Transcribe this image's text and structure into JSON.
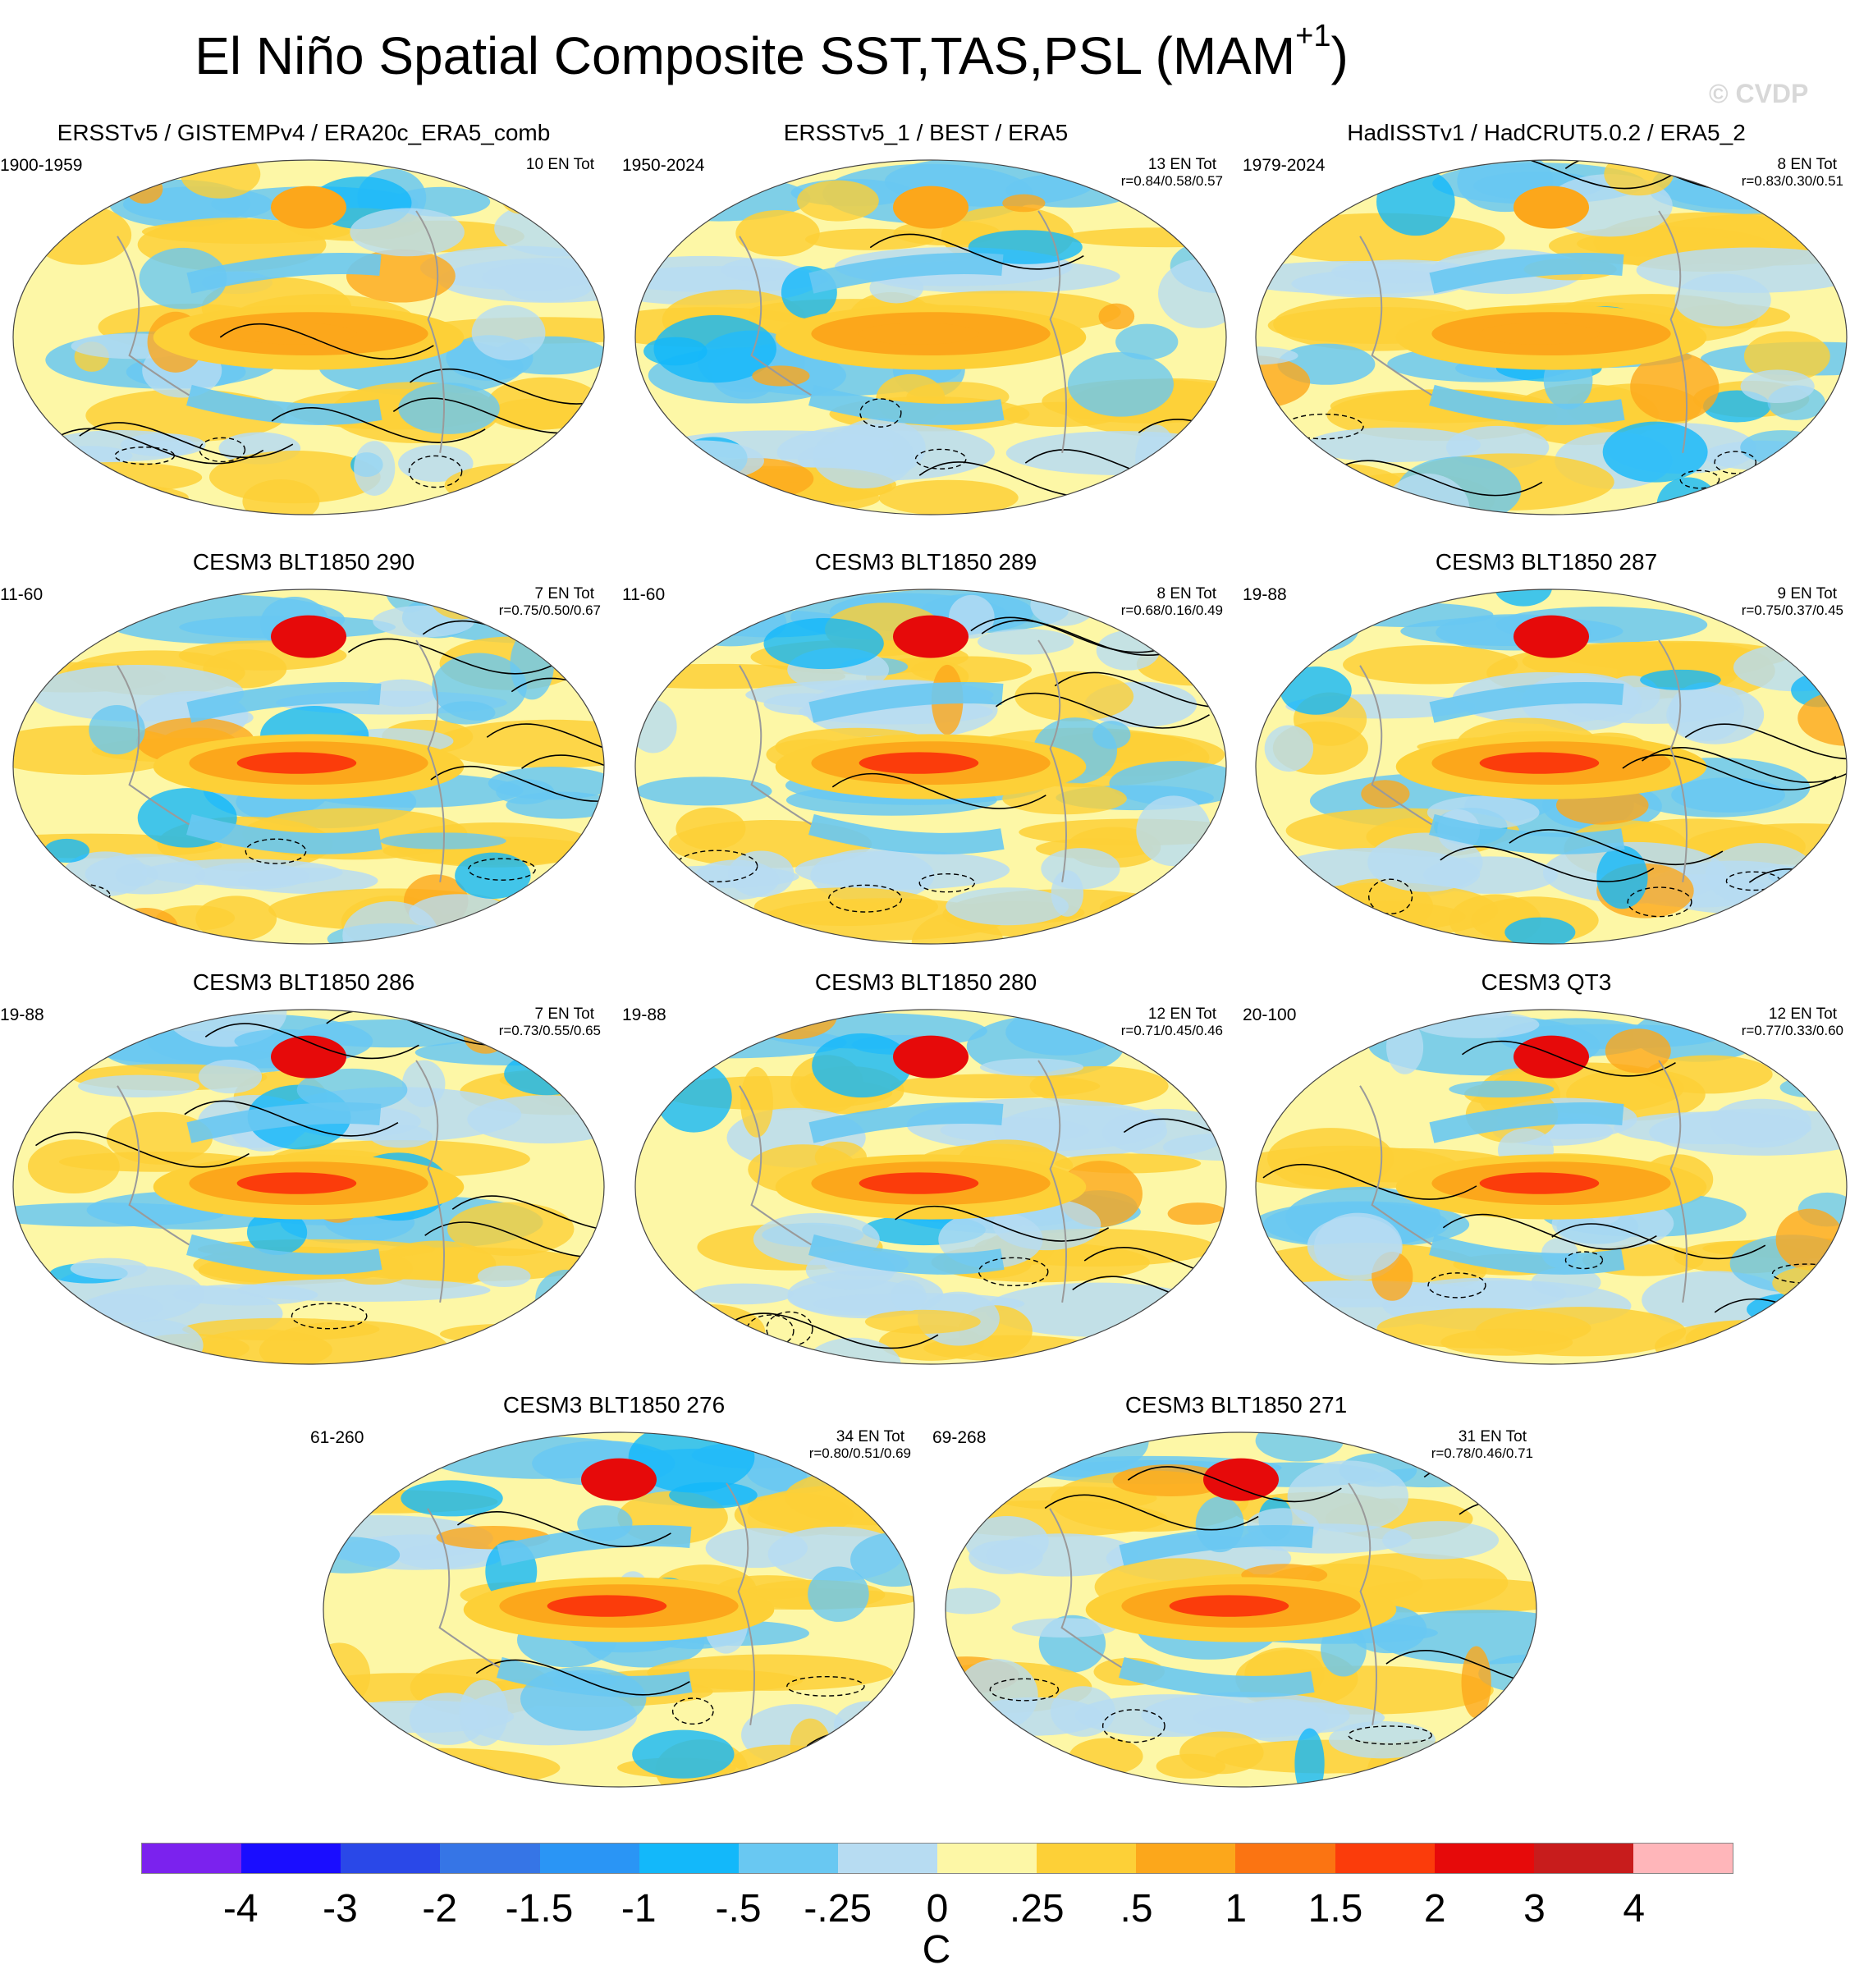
{
  "title": {
    "text": "El Niño Spatial Composite SST,TAS,PSL (MAM",
    "sup": "+1",
    "close": ")"
  },
  "copyright": "© CVDP",
  "panels": [
    {
      "title": "ERSSTv5 / GISTEMPv4 / ERA20c_ERA5_comb",
      "period": "1900-1959",
      "count": "10 EN Tot",
      "corr": ""
    },
    {
      "title": "ERSSTv5_1 / BEST / ERA5",
      "period": "1950-2024",
      "count": "13 EN Tot",
      "corr": "r=0.84/0.58/0.57"
    },
    {
      "title": "HadISSTv1 / HadCRUT5.0.2 / ERA5_2",
      "period": "1979-2024",
      "count": "8 EN Tot",
      "corr": "r=0.83/0.30/0.51"
    },
    {
      "title": "CESM3 BLT1850 290",
      "period": "11-60",
      "count": "7 EN Tot",
      "corr": "r=0.75/0.50/0.67"
    },
    {
      "title": "CESM3 BLT1850 289",
      "period": "11-60",
      "count": "8 EN Tot",
      "corr": "r=0.68/0.16/0.49"
    },
    {
      "title": "CESM3 BLT1850 287",
      "period": "19-88",
      "count": "9 EN Tot",
      "corr": "r=0.75/0.37/0.45"
    },
    {
      "title": "CESM3 BLT1850 286",
      "period": "19-88",
      "count": "7 EN Tot",
      "corr": "r=0.73/0.55/0.65"
    },
    {
      "title": "CESM3 BLT1850 280",
      "period": "19-88",
      "count": "12 EN Tot",
      "corr": "r=0.71/0.45/0.46"
    },
    {
      "title": "CESM3 QT3",
      "period": "20-100",
      "count": "12 EN Tot",
      "corr": "r=0.77/0.33/0.60"
    },
    {
      "title": "CESM3 BLT1850 276",
      "period": "61-260",
      "count": "34 EN Tot",
      "corr": "r=0.80/0.51/0.69"
    },
    {
      "title": "CESM3 BLT1850 271",
      "period": "69-268",
      "count": "31 EN Tot",
      "corr": "r=0.78/0.46/0.71"
    }
  ],
  "colorbar": {
    "colors": [
      "#7b22ee",
      "#1a0dff",
      "#2a48e8",
      "#3675e6",
      "#2a95f5",
      "#13b8fa",
      "#69c8f2",
      "#b7dcf2",
      "#fdf7a6",
      "#fdd037",
      "#fca71b",
      "#fb7412",
      "#fb3c0b",
      "#e60a0a",
      "#c81c1c",
      "#ffb6ba"
    ],
    "labels": [
      "-4",
      "-3",
      "-2",
      "-1.5",
      "-1",
      "-.5",
      "-.25",
      "0",
      ".25",
      ".5",
      "1",
      "1.5",
      "2",
      "3",
      "4"
    ],
    "units": "C"
  }
}
